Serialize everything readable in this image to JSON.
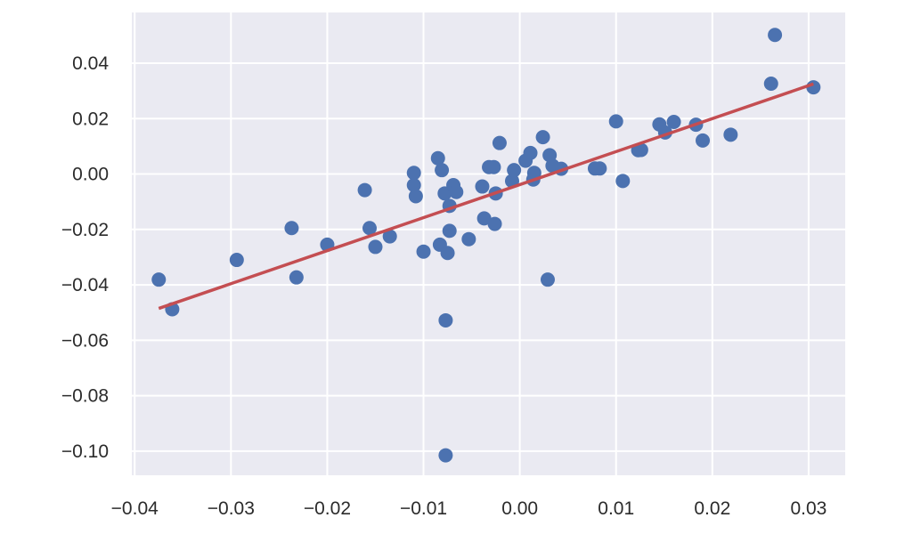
{
  "chart_data": {
    "type": "scatter",
    "title": "",
    "xlabel": "",
    "ylabel": "",
    "xlim": [
      -0.0403,
      0.0338
    ],
    "ylim": [
      -0.1087,
      0.0583
    ],
    "xticks": [
      -0.04,
      -0.03,
      -0.02,
      -0.01,
      0.0,
      0.01,
      0.02,
      0.03
    ],
    "xtick_labels": [
      "−0.04",
      "−0.03",
      "−0.02",
      "−0.01",
      "0.00",
      "0.01",
      "0.02",
      "0.03"
    ],
    "yticks": [
      0.04,
      0.02,
      0.0,
      -0.02,
      -0.04,
      -0.06,
      -0.08,
      -0.1
    ],
    "ytick_labels": [
      "0.04",
      "0.02",
      "0.00",
      "−0.02",
      "−0.04",
      "−0.06",
      "−0.08",
      "−0.10"
    ],
    "grid": true,
    "colors": {
      "background": "#EAEAF2",
      "grid": "#FFFFFF",
      "points": "#4C72B0",
      "fit_line": "#C44E52"
    },
    "series": [
      {
        "kind": "scatter",
        "points": [
          [
            -0.0375,
            -0.0381
          ],
          [
            -0.0361,
            -0.0488
          ],
          [
            -0.0294,
            -0.031
          ],
          [
            -0.0237,
            -0.0195
          ],
          [
            -0.0232,
            -0.0373
          ],
          [
            -0.02,
            -0.0255
          ],
          [
            -0.0161,
            -0.0058
          ],
          [
            -0.0156,
            -0.0195
          ],
          [
            -0.015,
            -0.0263
          ],
          [
            -0.0135,
            -0.0225
          ],
          [
            -0.011,
            0.0004
          ],
          [
            -0.011,
            -0.004
          ],
          [
            -0.0108,
            -0.008
          ],
          [
            -0.01,
            -0.028
          ],
          [
            -0.0085,
            0.0057
          ],
          [
            -0.0083,
            -0.0255
          ],
          [
            -0.0081,
            0.0014
          ],
          [
            -0.0078,
            -0.007
          ],
          [
            -0.0075,
            -0.0285
          ],
          [
            -0.0073,
            -0.0205
          ],
          [
            -0.0073,
            -0.0115
          ],
          [
            -0.0069,
            -0.004
          ],
          [
            -0.0066,
            -0.0065
          ],
          [
            -0.0077,
            -0.0528
          ],
          [
            -0.0077,
            -0.1015
          ],
          [
            -0.0053,
            -0.0235
          ],
          [
            -0.0039,
            -0.0045
          ],
          [
            -0.0037,
            -0.016
          ],
          [
            -0.0032,
            0.0025
          ],
          [
            -0.0027,
            0.0025
          ],
          [
            -0.0026,
            -0.018
          ],
          [
            -0.0025,
            -0.007
          ],
          [
            -0.0021,
            0.0112
          ],
          [
            -0.0008,
            -0.0025
          ],
          [
            -0.0006,
            0.0014
          ],
          [
            0.0006,
            0.0048
          ],
          [
            0.0011,
            0.0076
          ],
          [
            0.0014,
            -0.002
          ],
          [
            0.0015,
            0.0004
          ],
          [
            0.0024,
            0.0133
          ],
          [
            0.0029,
            -0.0381
          ],
          [
            0.0031,
            0.0068
          ],
          [
            0.0034,
            0.003
          ],
          [
            0.0043,
            0.0019
          ],
          [
            0.0078,
            0.002
          ],
          [
            0.0083,
            0.002
          ],
          [
            0.01,
            0.019
          ],
          [
            0.0107,
            -0.0025
          ],
          [
            0.0123,
            0.0086
          ],
          [
            0.0126,
            0.0087
          ],
          [
            0.0145,
            0.0179
          ],
          [
            0.0151,
            0.015
          ],
          [
            0.016,
            0.0188
          ],
          [
            0.0183,
            0.0178
          ],
          [
            0.019,
            0.0121
          ],
          [
            0.0219,
            0.0142
          ],
          [
            0.0261,
            0.0326
          ],
          [
            0.0265,
            0.0502
          ],
          [
            0.0305,
            0.0313
          ]
        ]
      },
      {
        "kind": "line",
        "x": [
          -0.0375,
          0.0305
        ],
        "y": [
          -0.0485,
          0.0325
        ]
      }
    ]
  }
}
